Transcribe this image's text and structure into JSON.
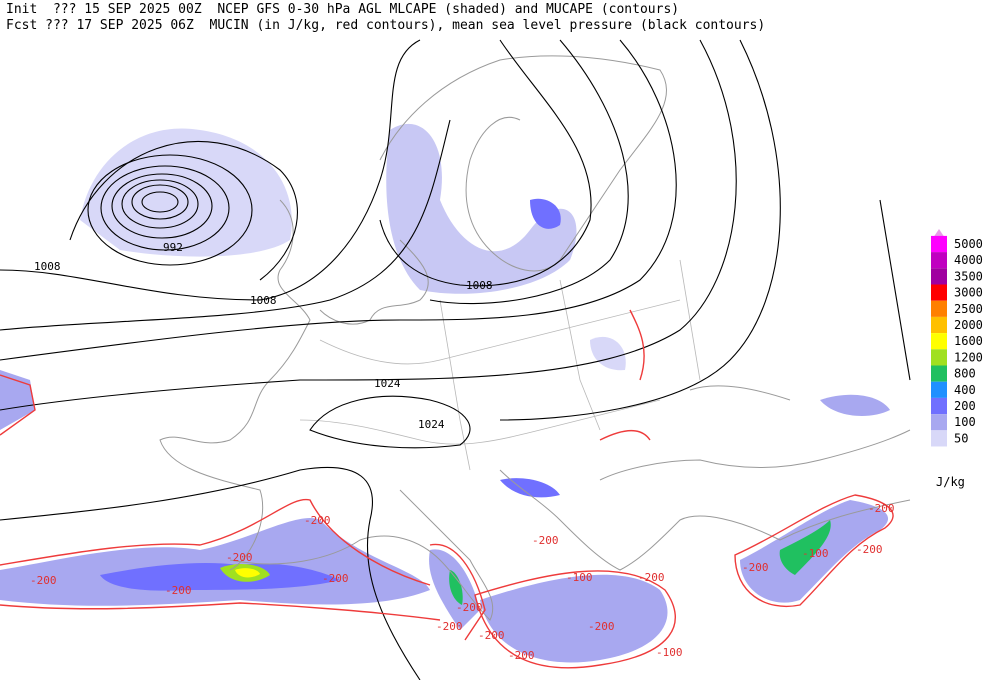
{
  "header": {
    "line1": "Init  ??? 15 SEP 2025 00Z  NCEP GFS 0-30 hPa AGL MLCAPE (shaded) and MUCAPE (contours)",
    "line2": "Fcst ??? 17 SEP 2025 06Z  MUCIN (in J/kg, red contours), mean sea level pressure (black contours)"
  },
  "colorbar": {
    "levels": [
      5000,
      4000,
      3500,
      3000,
      2500,
      2000,
      1600,
      1200,
      800,
      400,
      200,
      100,
      50
    ],
    "colors": [
      "#ff00ff",
      "#c000c0",
      "#a000a0",
      "#ff0000",
      "#ff8000",
      "#ffc000",
      "#ffff00",
      "#a0e020",
      "#20c060",
      "#2090ff",
      "#7070ff",
      "#a8a8f0",
      "#d8d8f8"
    ],
    "unit": "J/kg"
  },
  "isobar_labels": [
    992,
    1008,
    1008,
    1008,
    1024,
    1024
  ],
  "mucin_labels": [
    -200,
    -200,
    -200,
    -200,
    -200,
    -200,
    -100,
    -200,
    -200,
    -200,
    -200,
    -200,
    -200,
    -100,
    -200,
    -200,
    -100,
    -200
  ]
}
